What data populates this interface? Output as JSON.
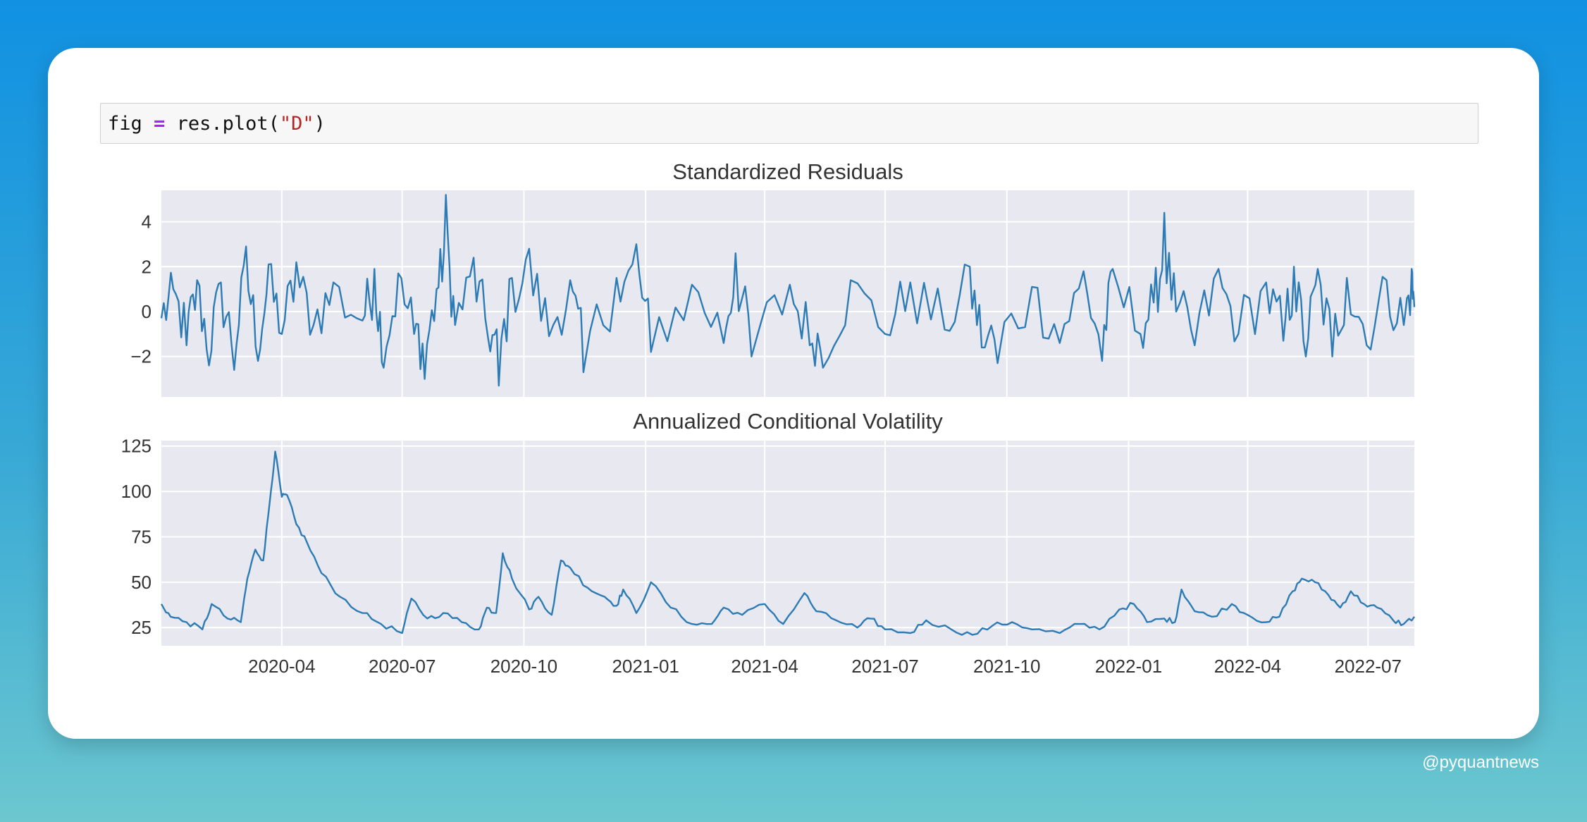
{
  "code": {
    "var": "fig",
    "op": "=",
    "call_prefix": " res.plot(",
    "arg": "\"D\"",
    "call_suffix": ")"
  },
  "credit": "@pyquantnews",
  "colors": {
    "line": "#2c7bb4",
    "axes_bg": "#e8e8f0",
    "grid": "#ffffff"
  },
  "chart_data": [
    {
      "type": "line",
      "title": "Standardized Residuals",
      "x_range": [
        "2020-01-01",
        "2022-08-05"
      ],
      "ylim": [
        -3.8,
        5.4
      ],
      "yticks": [
        -2,
        0,
        2,
        4
      ],
      "ytick_labels": [
        "−2",
        "0",
        "2",
        "4"
      ],
      "grid": true,
      "series": [
        {
          "anchors": [
            [
              "2020-01-01",
              -0.3
            ],
            [
              "2020-01-10",
              1.0
            ],
            [
              "2020-01-20",
              -1.5
            ],
            [
              "2020-01-28",
              1.4
            ],
            [
              "2020-02-06",
              -2.4
            ],
            [
              "2020-02-15",
              1.3
            ],
            [
              "2020-02-25",
              -2.6
            ],
            [
              "2020-03-05",
              2.9
            ],
            [
              "2020-03-14",
              -2.2
            ],
            [
              "2020-03-22",
              2.1
            ],
            [
              "2020-04-01",
              -1.0
            ],
            [
              "2020-04-12",
              2.2
            ],
            [
              "2020-04-25",
              -0.6
            ],
            [
              "2020-05-10",
              1.3
            ],
            [
              "2020-06-01",
              -0.4
            ],
            [
              "2020-06-10",
              1.9
            ],
            [
              "2020-06-17",
              -2.5
            ],
            [
              "2020-06-28",
              1.7
            ],
            [
              "2020-07-10",
              -1.0
            ],
            [
              "2020-07-18",
              -3.0
            ],
            [
              "2020-07-27",
              1.0
            ],
            [
              "2020-08-03",
              5.2
            ],
            [
              "2020-08-10",
              -0.6
            ],
            [
              "2020-08-24",
              2.4
            ],
            [
              "2020-09-04",
              -1.2
            ],
            [
              "2020-09-12",
              -3.3
            ],
            [
              "2020-09-22",
              1.5
            ],
            [
              "2020-10-05",
              2.8
            ],
            [
              "2020-10-20",
              -1.1
            ],
            [
              "2020-11-05",
              1.4
            ],
            [
              "2020-11-15",
              -2.7
            ],
            [
              "2020-12-10",
              1.5
            ],
            [
              "2020-12-25",
              3.0
            ],
            [
              "2021-01-05",
              -1.8
            ],
            [
              "2021-02-05",
              1.2
            ],
            [
              "2021-03-01",
              -1.4
            ],
            [
              "2021-03-10",
              2.6
            ],
            [
              "2021-03-22",
              -2.0
            ],
            [
              "2021-04-20",
              1.2
            ],
            [
              "2021-05-05",
              -1.5
            ],
            [
              "2021-05-15",
              -2.5
            ],
            [
              "2021-06-05",
              1.4
            ],
            [
              "2021-07-01",
              -1.0
            ],
            [
              "2021-07-20",
              1.3
            ],
            [
              "2021-08-15",
              -0.8
            ],
            [
              "2021-09-03",
              2.0
            ],
            [
              "2021-09-12",
              -1.6
            ],
            [
              "2021-09-24",
              -2.3
            ],
            [
              "2021-10-20",
              1.1
            ],
            [
              "2021-11-10",
              -1.4
            ],
            [
              "2021-11-28",
              1.8
            ],
            [
              "2021-12-12",
              -2.2
            ],
            [
              "2021-12-20",
              1.9
            ],
            [
              "2022-01-10",
              -1.0
            ],
            [
              "2022-01-20",
              0.4
            ],
            [
              "2022-01-28",
              4.4
            ],
            [
              "2022-02-06",
              0.0
            ],
            [
              "2022-02-20",
              -1.5
            ],
            [
              "2022-03-10",
              1.9
            ],
            [
              "2022-03-25",
              -1.0
            ],
            [
              "2022-04-15",
              1.3
            ],
            [
              "2022-04-28",
              -1.3
            ],
            [
              "2022-05-06",
              2.0
            ],
            [
              "2022-05-15",
              -2.0
            ],
            [
              "2022-05-24",
              1.9
            ],
            [
              "2022-06-04",
              -2.0
            ],
            [
              "2022-06-15",
              1.5
            ],
            [
              "2022-06-30",
              -1.5
            ],
            [
              "2022-07-15",
              1.4
            ],
            [
              "2022-07-28",
              -0.6
            ],
            [
              "2022-08-03",
              1.9
            ],
            [
              "2022-08-05",
              0.2
            ]
          ]
        }
      ]
    },
    {
      "type": "line",
      "title": "Annualized Conditional Volatility",
      "x_range": [
        "2020-01-01",
        "2022-08-05"
      ],
      "ylim": [
        15,
        128
      ],
      "yticks": [
        25,
        50,
        75,
        100,
        125
      ],
      "xticks": [
        "2020-04-01",
        "2020-07-01",
        "2020-10-01",
        "2021-01-01",
        "2021-04-01",
        "2021-07-01",
        "2021-10-01",
        "2022-01-01",
        "2022-04-01",
        "2022-07-01"
      ],
      "xtick_labels": [
        "2020-04",
        "2020-07",
        "2020-10",
        "2021-01",
        "2021-04",
        "2021-07",
        "2021-10",
        "2022-01",
        "2022-04",
        "2022-07"
      ],
      "grid": true,
      "series": [
        {
          "anchors": [
            [
              "2020-01-01",
              38
            ],
            [
              "2020-01-08",
              31
            ],
            [
              "2020-01-20",
              28
            ],
            [
              "2020-02-01",
              24
            ],
            [
              "2020-02-08",
              38
            ],
            [
              "2020-02-20",
              30
            ],
            [
              "2020-03-01",
              28
            ],
            [
              "2020-03-06",
              52
            ],
            [
              "2020-03-12",
              68
            ],
            [
              "2020-03-18",
              62
            ],
            [
              "2020-03-23",
              95
            ],
            [
              "2020-03-27",
              122
            ],
            [
              "2020-04-01",
              97
            ],
            [
              "2020-04-05",
              98
            ],
            [
              "2020-04-12",
              82
            ],
            [
              "2020-04-20",
              72
            ],
            [
              "2020-05-01",
              55
            ],
            [
              "2020-05-15",
              42
            ],
            [
              "2020-06-01",
              33
            ],
            [
              "2020-06-15",
              27
            ],
            [
              "2020-07-01",
              22
            ],
            [
              "2020-07-08",
              41
            ],
            [
              "2020-07-20",
              30
            ],
            [
              "2020-08-01",
              33
            ],
            [
              "2020-08-15",
              28
            ],
            [
              "2020-08-28",
              24
            ],
            [
              "2020-09-03",
              36
            ],
            [
              "2020-09-10",
              33
            ],
            [
              "2020-09-15",
              66
            ],
            [
              "2020-09-22",
              52
            ],
            [
              "2020-10-05",
              35
            ],
            [
              "2020-10-12",
              42
            ],
            [
              "2020-10-22",
              32
            ],
            [
              "2020-10-29",
              62
            ],
            [
              "2020-11-05",
              58
            ],
            [
              "2020-11-18",
              47
            ],
            [
              "2020-12-01",
              42
            ],
            [
              "2020-12-10",
              37
            ],
            [
              "2020-12-15",
              46
            ],
            [
              "2020-12-25",
              33
            ],
            [
              "2021-01-05",
              50
            ],
            [
              "2021-01-20",
              36
            ],
            [
              "2021-02-05",
              27
            ],
            [
              "2021-02-20",
              27
            ],
            [
              "2021-03-01",
              36
            ],
            [
              "2021-03-15",
              32
            ],
            [
              "2021-04-01",
              38
            ],
            [
              "2021-04-15",
              27
            ],
            [
              "2021-05-01",
              44
            ],
            [
              "2021-05-10",
              34
            ],
            [
              "2021-05-25",
              29
            ],
            [
              "2021-06-10",
              25
            ],
            [
              "2021-06-20",
              30
            ],
            [
              "2021-07-01",
              24
            ],
            [
              "2021-07-20",
              22
            ],
            [
              "2021-08-01",
              29
            ],
            [
              "2021-08-20",
              24
            ],
            [
              "2021-09-05",
              21
            ],
            [
              "2021-09-20",
              26
            ],
            [
              "2021-10-05",
              28
            ],
            [
              "2021-10-20",
              24
            ],
            [
              "2021-11-10",
              22
            ],
            [
              "2021-11-25",
              27
            ],
            [
              "2021-12-10",
              24
            ],
            [
              "2021-12-25",
              35
            ],
            [
              "2022-01-05",
              38
            ],
            [
              "2022-01-15",
              28
            ],
            [
              "2022-01-28",
              30
            ],
            [
              "2022-02-05",
              28
            ],
            [
              "2022-02-10",
              46
            ],
            [
              "2022-02-20",
              34
            ],
            [
              "2022-03-05",
              31
            ],
            [
              "2022-03-20",
              38
            ],
            [
              "2022-04-01",
              32
            ],
            [
              "2022-04-15",
              28
            ],
            [
              "2022-04-25",
              31
            ],
            [
              "2022-05-05",
              45
            ],
            [
              "2022-05-12",
              52
            ],
            [
              "2022-05-22",
              50
            ],
            [
              "2022-06-01",
              43
            ],
            [
              "2022-06-10",
              36
            ],
            [
              "2022-06-18",
              45
            ],
            [
              "2022-06-28",
              38
            ],
            [
              "2022-07-08",
              36
            ],
            [
              "2022-07-20",
              29
            ],
            [
              "2022-07-28",
              27
            ],
            [
              "2022-08-05",
              31
            ]
          ]
        }
      ]
    }
  ]
}
